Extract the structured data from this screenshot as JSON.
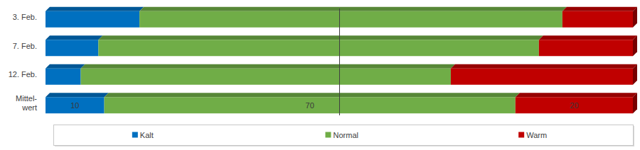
{
  "chart_data": {
    "type": "bar",
    "orientation": "horizontal",
    "stacked": true,
    "categories": [
      "3. Feb.",
      "7. Feb.",
      "12. Feb.",
      "Mittel-\nwert"
    ],
    "series": [
      {
        "name": "Kalt",
        "color": "#0070c0",
        "values": [
          16,
          9,
          6,
          10
        ],
        "value_labels": [
          null,
          null,
          null,
          "10"
        ]
      },
      {
        "name": "Normal",
        "color": "#70ad47",
        "values": [
          72,
          75,
          63,
          70
        ],
        "value_labels": [
          null,
          null,
          null,
          "70"
        ]
      },
      {
        "name": "Warm",
        "color": "#c00000",
        "values": [
          12,
          16,
          31,
          20
        ],
        "value_labels": [
          null,
          null,
          null,
          "20"
        ]
      }
    ],
    "xlim": [
      0,
      100
    ],
    "xticks": [
      50
    ],
    "grid": true,
    "tick_labels": false,
    "data_labels": true,
    "legend": "bottom"
  }
}
